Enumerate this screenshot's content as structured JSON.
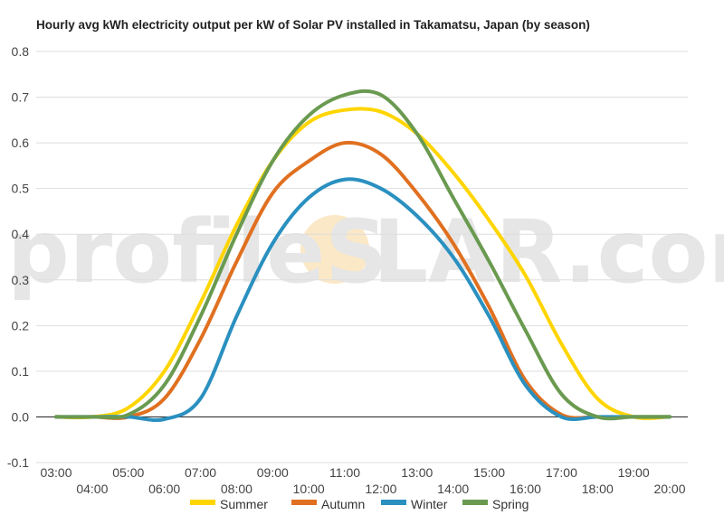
{
  "watermark": {
    "left": "profileS",
    "right": "LAR.com",
    "sun_color": "#fbe8c6"
  },
  "chart_data": {
    "type": "line",
    "title": "Hourly avg kWh electricity output per kW of Solar PV installed in Takamatsu, Japan (by season)",
    "xlabel": "",
    "ylabel": "",
    "ylim": [
      -0.1,
      0.8
    ],
    "y_ticks": [
      "-0.1",
      "0.0",
      "0.1",
      "0.2",
      "0.3",
      "0.4",
      "0.5",
      "0.6",
      "0.7",
      "0.8"
    ],
    "categories": [
      "03:00",
      "04:00",
      "05:00",
      "06:00",
      "07:00",
      "08:00",
      "09:00",
      "10:00",
      "11:00",
      "12:00",
      "13:00",
      "14:00",
      "15:00",
      "16:00",
      "17:00",
      "18:00",
      "19:00",
      "20:00"
    ],
    "grid": true,
    "legend_position": "bottom",
    "series": [
      {
        "name": "Summer",
        "color": "#ffd500",
        "values": [
          0.0,
          0.0,
          0.02,
          0.1,
          0.25,
          0.42,
          0.56,
          0.645,
          0.672,
          0.668,
          0.62,
          0.535,
          0.43,
          0.31,
          0.16,
          0.04,
          0.0,
          0.0
        ]
      },
      {
        "name": "Autumn",
        "color": "#e07020",
        "values": [
          0.0,
          0.0,
          0.0,
          0.04,
          0.17,
          0.34,
          0.49,
          0.56,
          0.6,
          0.575,
          0.49,
          0.38,
          0.24,
          0.08,
          0.005,
          0.0,
          0.0,
          0.0
        ]
      },
      {
        "name": "Winter",
        "color": "#2a90c0",
        "values": [
          0.0,
          0.0,
          0.0,
          -0.005,
          0.04,
          0.22,
          0.38,
          0.48,
          0.52,
          0.5,
          0.44,
          0.35,
          0.22,
          0.07,
          0.0,
          0.0,
          0.0,
          0.0
        ]
      },
      {
        "name": "Spring",
        "color": "#6a9a50",
        "values": [
          0.0,
          0.0,
          0.005,
          0.07,
          0.22,
          0.4,
          0.56,
          0.66,
          0.705,
          0.705,
          0.62,
          0.48,
          0.34,
          0.19,
          0.05,
          0.0,
          0.0,
          0.0
        ]
      }
    ]
  }
}
